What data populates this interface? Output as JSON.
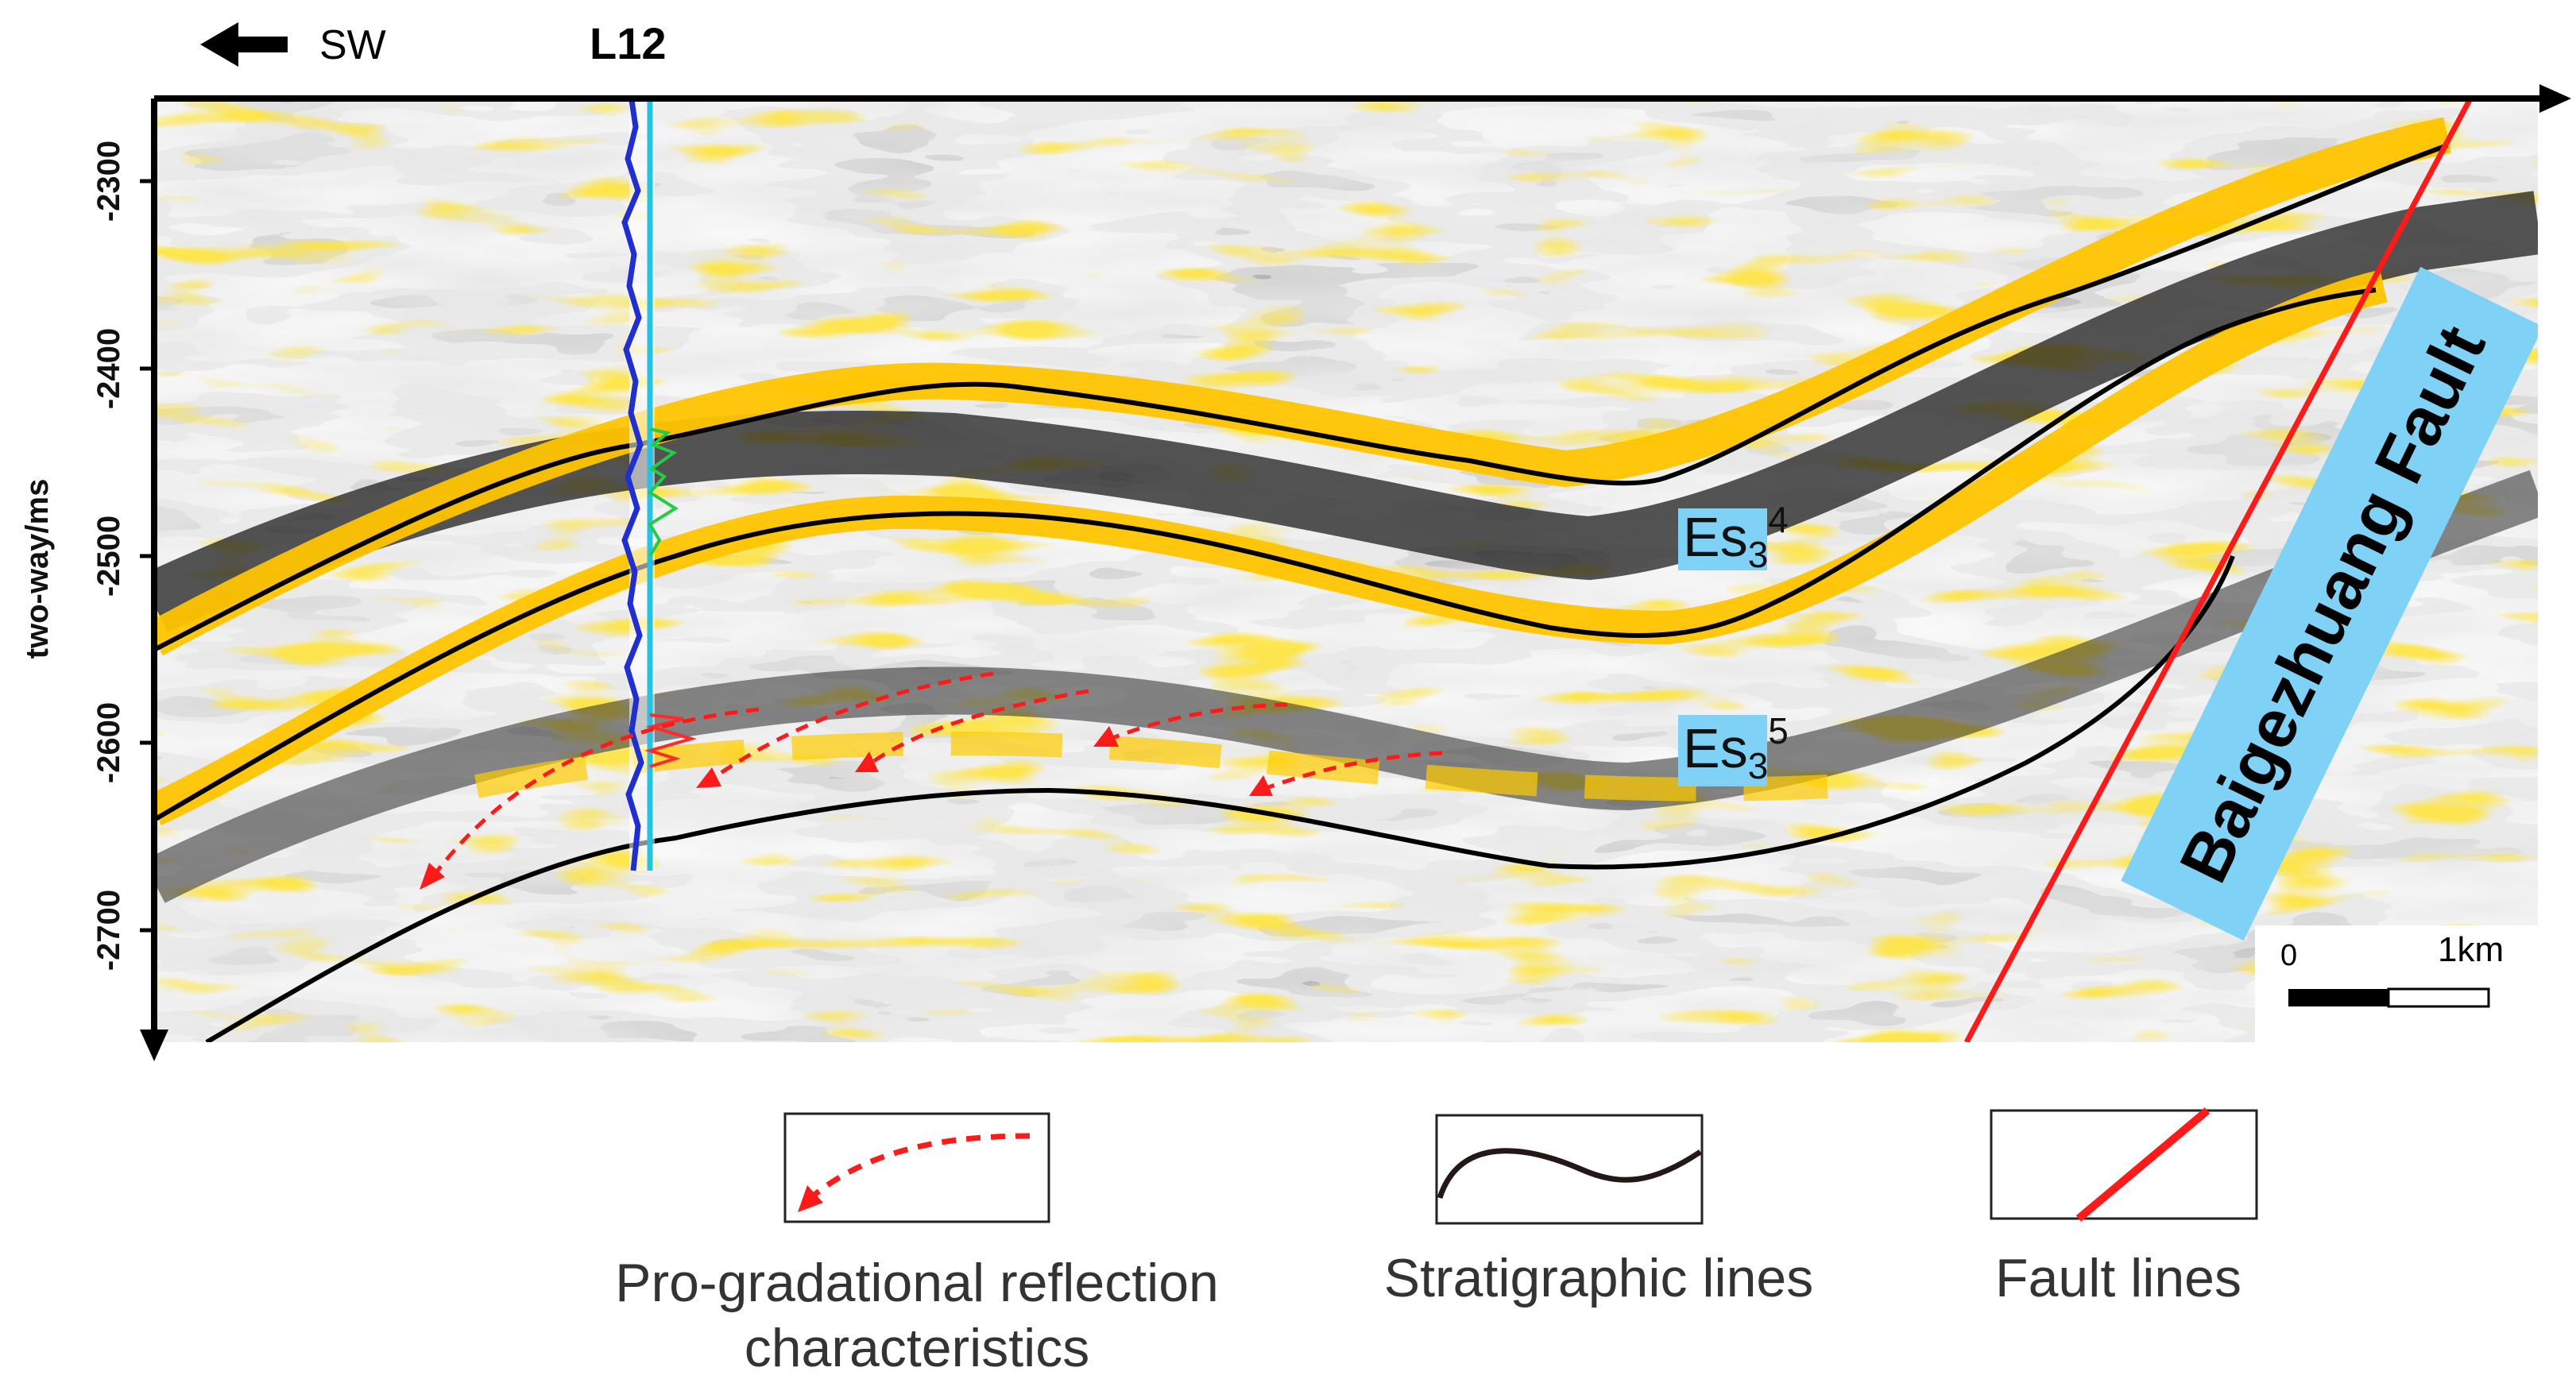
{
  "header": {
    "direction_label": "SW",
    "well_label": "L12"
  },
  "axis": {
    "ylabel": "two-way/ms",
    "ticks": [
      "-2300",
      "-2400",
      "-2500",
      "-2600",
      "-2700"
    ]
  },
  "units": {
    "upper": {
      "base": "Es",
      "sub": "3",
      "sup": "4"
    },
    "lower": {
      "base": "Es",
      "sub": "3",
      "sup": "5"
    }
  },
  "fault": {
    "label": "Baigezhuang Fault"
  },
  "scale_bar": {
    "start": "0",
    "end": "1km"
  },
  "legend": {
    "progradational": {
      "line1": "Pro-gradational reflection",
      "line2": "characteristics"
    },
    "stratigraphic": {
      "label": "Stratigraphic lines"
    },
    "fault": {
      "label": "Fault lines"
    }
  },
  "colors": {
    "seismic_yellow": "#ffd21a",
    "seismic_orange": "#f0a400",
    "seismic_dark": "#2a2a2a",
    "fault_red": "#ff1a1a",
    "label_blue": "#7fd2f5",
    "well_blue": "#1f2fd0",
    "well_cyan": "#24c3e6"
  }
}
